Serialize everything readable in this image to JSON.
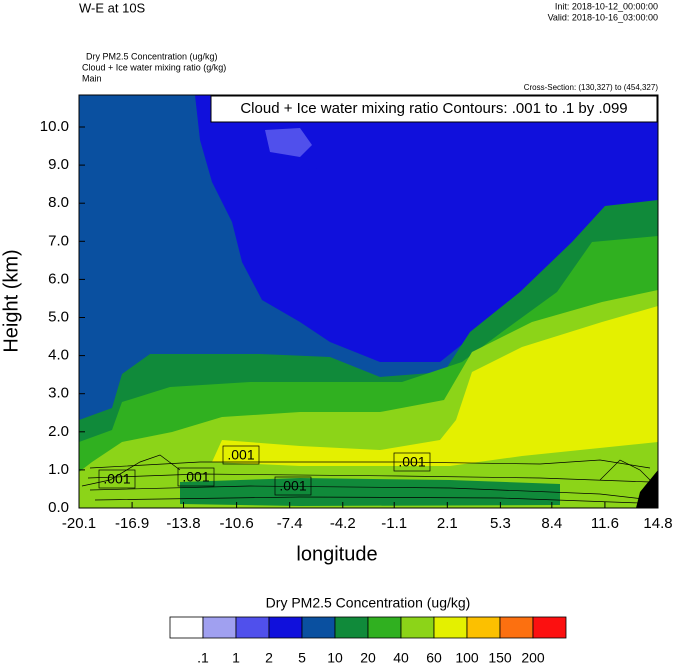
{
  "chart_data": {
    "type": "contour",
    "title": "W-E at 10S",
    "init": "Init: 2018-10-12_00:00:00",
    "valid": "Valid: 2018-10-16_03:00:00",
    "subtitles": [
      "Dry PM2.5 Concentration   (ug/kg)",
      "Cloud + Ice water mixing ratio   (g/kg)",
      "Main"
    ],
    "cross_section": "Cross-Section: (130,327) to (454,327)",
    "contour_info": "Cloud + Ice water mixing ratio Contours: .001 to .1 by .099",
    "contour_labels": [
      ".001",
      ".001",
      ".001",
      ".001",
      ".001"
    ],
    "xlabel": "longitude",
    "ylabel": "Height (km)",
    "xlim": [
      -20.1,
      14.8
    ],
    "xticks": [
      -20.1,
      -16.9,
      -13.8,
      -10.6,
      -7.4,
      -4.2,
      -1.1,
      2.1,
      5.3,
      8.4,
      11.6,
      14.8
    ],
    "ylim": [
      0,
      10.84
    ],
    "yticks": [
      {
        "value": 0,
        "label": "0.0"
      },
      {
        "value": 1,
        "label": "1.0"
      },
      {
        "value": 2,
        "label": "2.0"
      },
      {
        "value": 3,
        "label": "3.0"
      },
      {
        "value": 4,
        "label": "4.0"
      },
      {
        "value": 5,
        "label": "5.0"
      },
      {
        "value": 6,
        "label": "6.0"
      },
      {
        "value": 7,
        "label": "7.0"
      },
      {
        "value": 8,
        "label": "8.0"
      },
      {
        "value": 9,
        "label": "9.0"
      },
      {
        "value": 10,
        "label": "10.0"
      }
    ],
    "colorbar": {
      "title": "Dry PM2.5 Concentration  (ug/kg)",
      "levels": [
        {
          "value": 0.1,
          "label": ".1"
        },
        1,
        2,
        5,
        10,
        20,
        40,
        60,
        100,
        150,
        200
      ],
      "colors": [
        "#ffffff",
        "#a0a0f0",
        "#5050ec",
        "#1010dc",
        "#0a50a0",
        "#108a3a",
        "#30b020",
        "#8cd418",
        "#e4f000",
        "#fcc000",
        "#fc7010",
        "#fc1010"
      ]
    }
  }
}
